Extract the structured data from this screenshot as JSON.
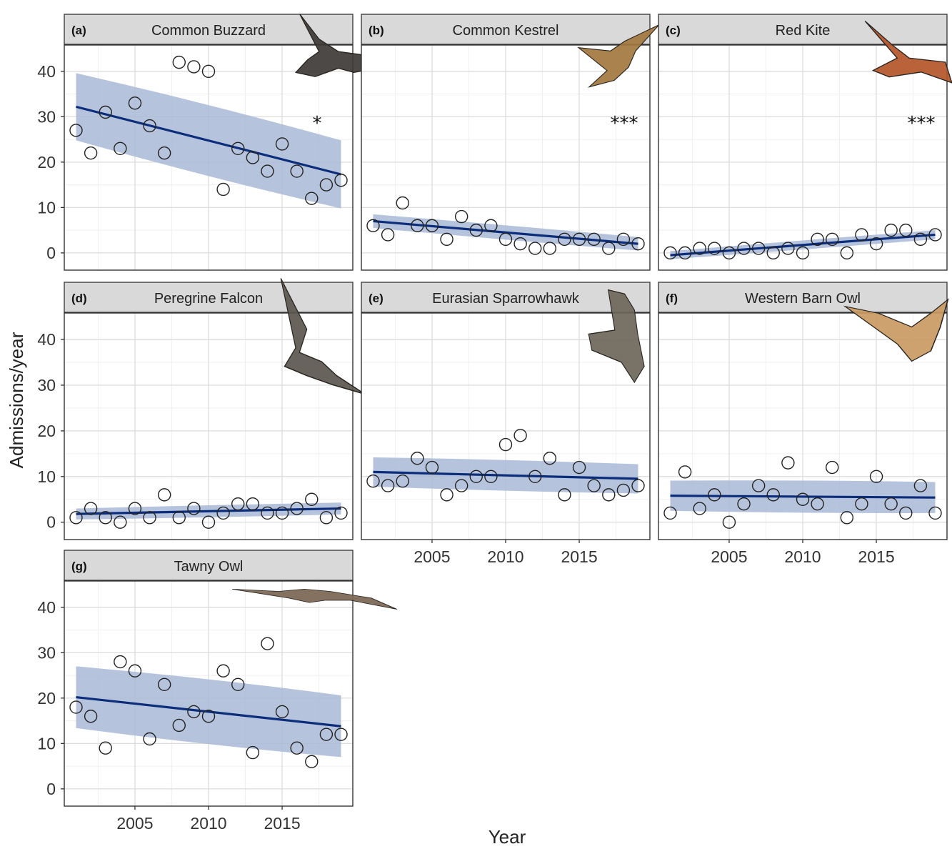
{
  "chart_data": {
    "type": "scatter",
    "layout": "faceted",
    "xlabel": "Year",
    "ylabel": "Admissions/year",
    "xlim": [
      2001,
      2019
    ],
    "ylim": [
      0,
      43
    ],
    "x_ticks": [
      2005,
      2010,
      2015
    ],
    "y_ticks": [
      0,
      10,
      20,
      30,
      40
    ],
    "grid": true,
    "legend": "none",
    "years": [
      2001,
      2002,
      2003,
      2004,
      2005,
      2006,
      2007,
      2008,
      2009,
      2010,
      2011,
      2012,
      2013,
      2014,
      2015,
      2016,
      2017,
      2018,
      2019
    ],
    "colors": {
      "trend": "#0b2d7a",
      "band": "#a9b8d6",
      "strip": "#d9d9d9"
    },
    "panels": [
      {
        "letter": "(a)",
        "title": "Common Buzzard",
        "signif": "*",
        "image": "buzzard-photo",
        "values": [
          27,
          22,
          31,
          23,
          33,
          28,
          22,
          42,
          41,
          40,
          14,
          23,
          21,
          18,
          24,
          18,
          12,
          15,
          16
        ],
        "fit": [
          32.2,
          17.3
        ],
        "band_lo": [
          24.8,
          9.8
        ],
        "band_hi": [
          39.6,
          24.8
        ],
        "band_mid": [
          29.0,
          20.5
        ]
      },
      {
        "letter": "(b)",
        "title": "Common Kestrel",
        "signif": "***",
        "image": "kestrel-photo",
        "values": [
          6,
          4,
          11,
          6,
          6,
          3,
          8,
          5,
          6,
          3,
          2,
          1,
          1,
          3,
          3,
          3,
          1,
          3,
          2
        ],
        "fit": [
          7.0,
          2.0
        ],
        "band_lo": [
          5.5,
          0.5
        ],
        "band_hi": [
          8.5,
          3.5
        ],
        "band_mid": [
          4.0,
          4.8
        ]
      },
      {
        "letter": "(c)",
        "title": "Red Kite",
        "signif": "***",
        "image": "red-kite-photo",
        "values": [
          0,
          0,
          1,
          1,
          0,
          1,
          1,
          0,
          1,
          0,
          3,
          3,
          0,
          4,
          2,
          5,
          5,
          3,
          4
        ],
        "fit": [
          -0.5,
          4.0
        ],
        "band_lo": [
          -1.4,
          3.0
        ],
        "band_hi": [
          0.4,
          5.0
        ],
        "band_mid": [
          1.2,
          2.3
        ]
      },
      {
        "letter": "(d)",
        "title": "Peregrine Falcon",
        "signif": "",
        "image": "peregrine-photo",
        "values": [
          1,
          3,
          1,
          0,
          3,
          1,
          6,
          1,
          3,
          0,
          2,
          4,
          4,
          2,
          2,
          3,
          5,
          1,
          2
        ],
        "fit": [
          1.8,
          3.0
        ],
        "band_lo": [
          0.6,
          1.7
        ],
        "band_hi": [
          3.0,
          4.3
        ],
        "band_mid": [
          1.6,
          3.2
        ]
      },
      {
        "letter": "(e)",
        "title": "Eurasian Sparrowhawk",
        "signif": "",
        "image": "sparrowhawk-photo",
        "values": [
          9,
          8,
          9,
          14,
          12,
          6,
          8,
          10,
          10,
          17,
          19,
          10,
          14,
          6,
          12,
          8,
          6,
          7,
          8
        ],
        "fit": [
          11.0,
          9.5
        ],
        "band_lo": [
          7.8,
          6.3
        ],
        "band_hi": [
          14.2,
          12.7
        ],
        "band_mid": [
          8.8,
          11.7
        ]
      },
      {
        "letter": "(f)",
        "title": "Western Barn Owl",
        "signif": "",
        "image": "barn-owl-photo",
        "values": [
          2,
          11,
          3,
          6,
          0,
          4,
          8,
          6,
          13,
          5,
          4,
          12,
          1,
          4,
          10,
          4,
          2,
          8,
          2
        ],
        "fit": [
          5.8,
          5.4
        ],
        "band_lo": [
          2.5,
          2.0
        ],
        "band_hi": [
          9.1,
          8.8
        ],
        "band_mid": [
          3.9,
          7.3
        ]
      },
      {
        "letter": "(g)",
        "title": "Tawny Owl",
        "signif": "",
        "image": "tawny-owl-photo",
        "values": [
          18,
          16,
          9,
          28,
          26,
          11,
          23,
          14,
          17,
          16,
          26,
          23,
          8,
          32,
          17,
          9,
          6,
          12,
          12
        ],
        "fit": [
          20.2,
          13.8
        ],
        "band_lo": [
          13.4,
          7.0
        ],
        "band_hi": [
          27.0,
          20.6
        ],
        "band_mid": [
          15.8,
          18.2
        ]
      }
    ]
  }
}
